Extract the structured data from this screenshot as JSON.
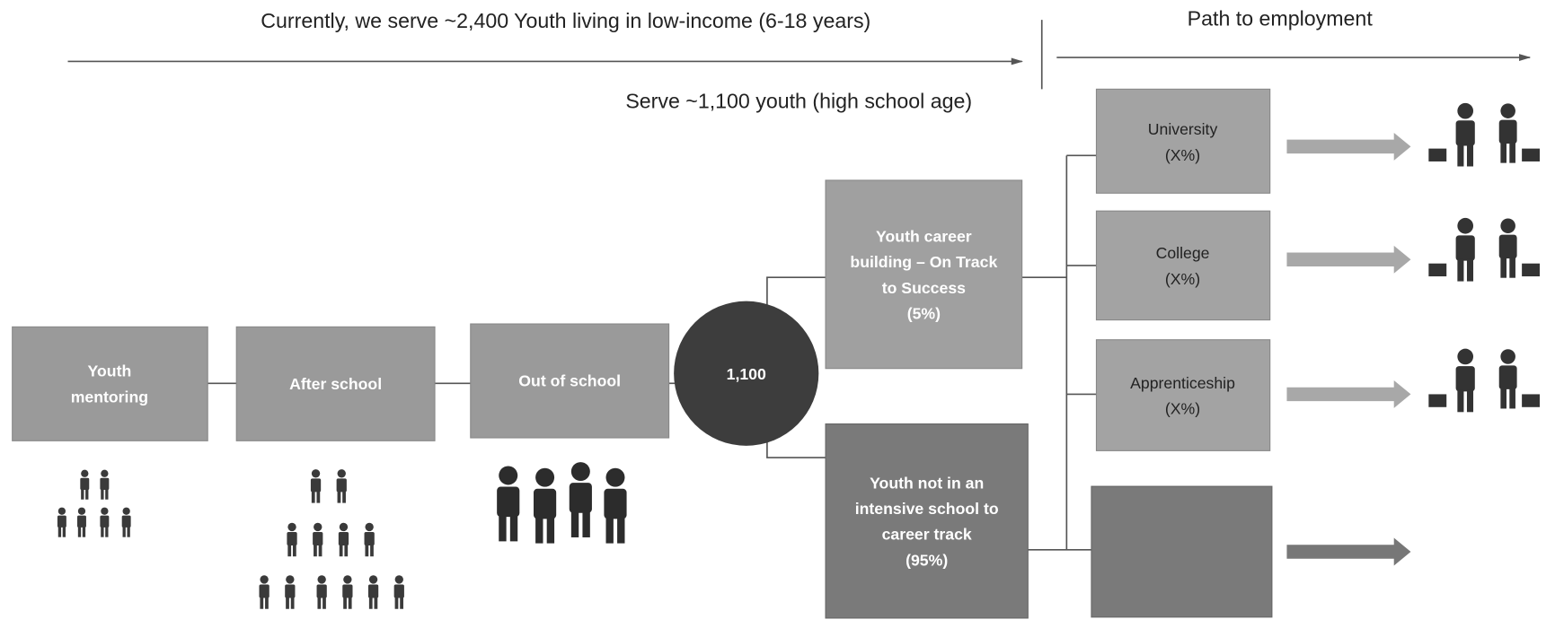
{
  "header": {
    "left": "Currently, we serve ~2,400 Youth living in low-income (6-18 years)",
    "right": "Path to employment"
  },
  "subheader": "Serve ~1,100 youth (high school age)",
  "programs": [
    {
      "lines": [
        "Youth",
        "mentoring"
      ]
    },
    {
      "lines": [
        "After school"
      ]
    },
    {
      "lines": [
        "Out of school"
      ]
    }
  ],
  "hub": "1,100",
  "tracks": [
    {
      "lines": [
        "Youth career",
        "building – On Track",
        "to Success",
        "(5%)"
      ]
    },
    {
      "lines": [
        "Youth not in an",
        "intensive school to",
        "career track",
        "(95%)"
      ]
    }
  ],
  "outcomes": [
    {
      "lines": [
        "University",
        "(X%)"
      ]
    },
    {
      "lines": [
        "College",
        "(X%)"
      ]
    },
    {
      "lines": [
        "Apprenticeship",
        "(X%)"
      ]
    }
  ]
}
